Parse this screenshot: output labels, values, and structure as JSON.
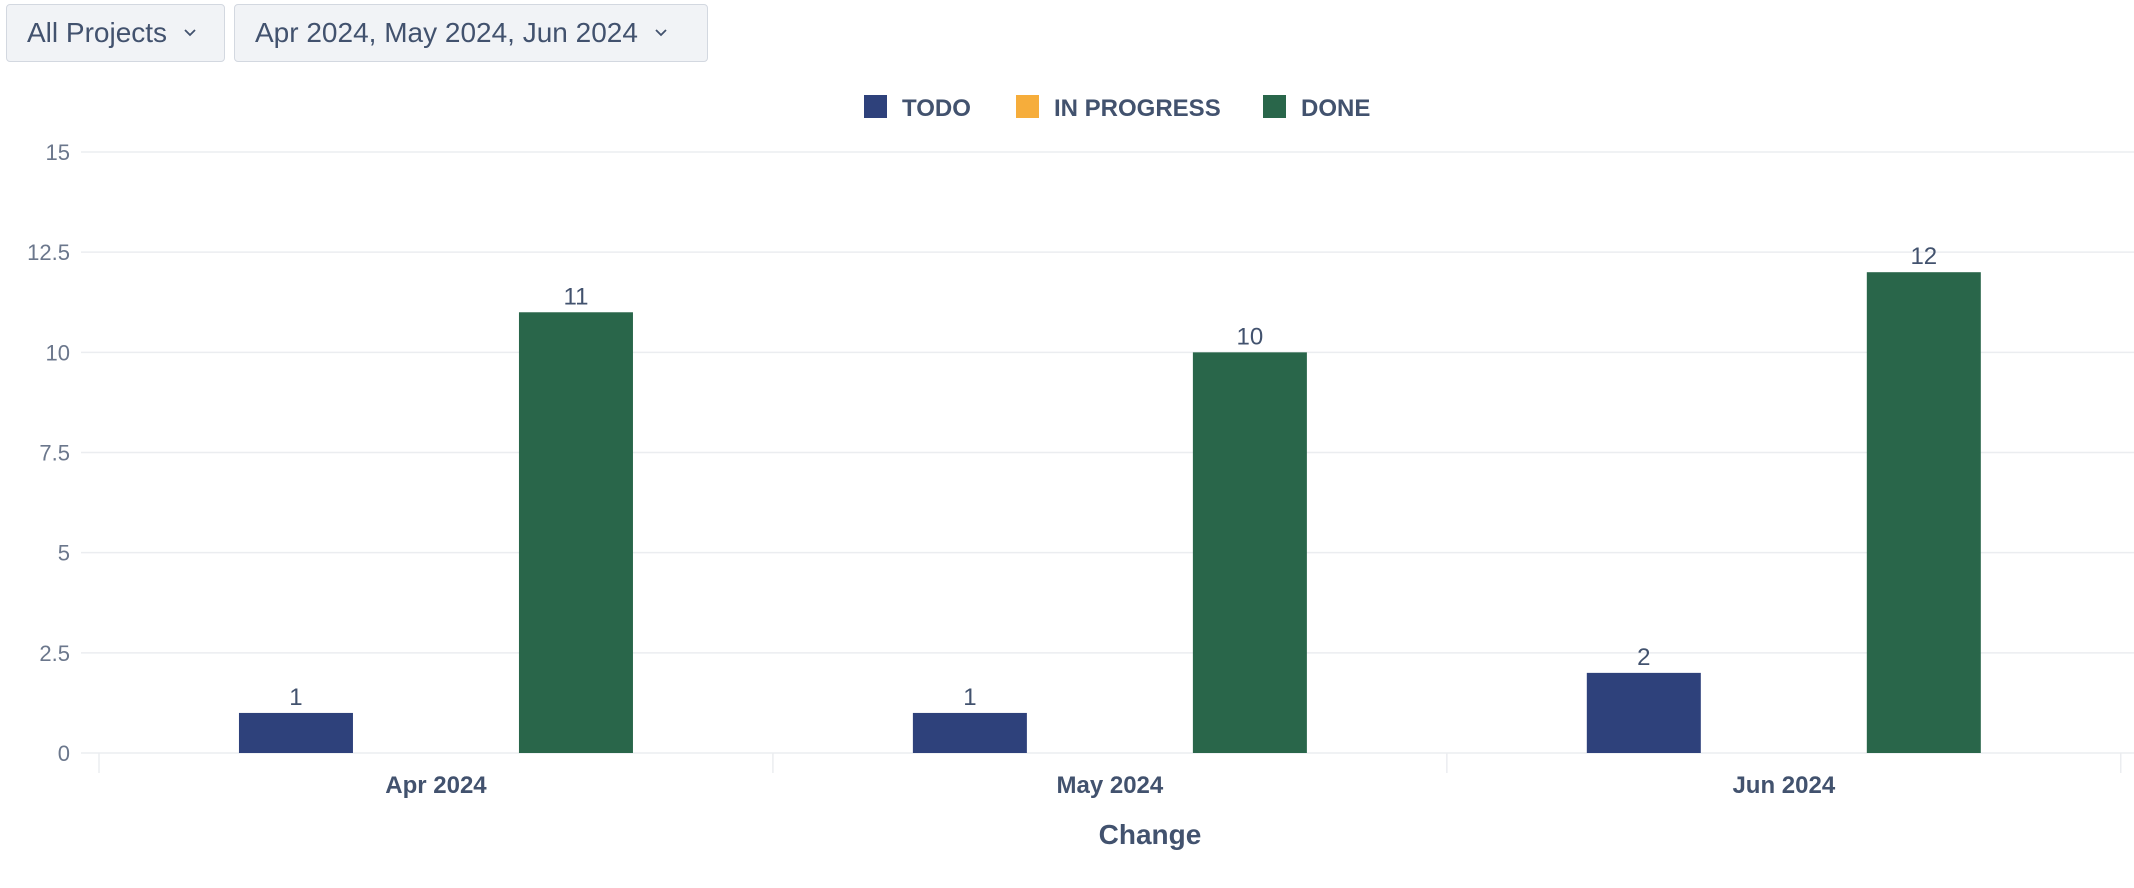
{
  "filters": {
    "project": {
      "label": "All Projects"
    },
    "period": {
      "label": "Apr 2024, May 2024, Jun 2024"
    }
  },
  "colors": {
    "todo": "#2e417b",
    "in_progress": "#f6ad3b",
    "done": "#29664a"
  },
  "chart_data": {
    "type": "bar",
    "xlabel": "Change",
    "categories": [
      "Apr 2024",
      "May 2024",
      "Jun 2024"
    ],
    "series": [
      {
        "name": "TODO",
        "color": "#2e417b",
        "values": [
          1,
          1,
          2
        ]
      },
      {
        "name": "IN PROGRESS",
        "color": "#f6ad3b",
        "values": [
          0,
          0,
          0
        ]
      },
      {
        "name": "DONE",
        "color": "#29664a",
        "values": [
          11,
          10,
          12
        ]
      }
    ],
    "data_labels": [
      [
        "1",
        "1",
        "2"
      ],
      [
        "",
        "",
        ""
      ],
      [
        "11",
        "10",
        "12"
      ]
    ],
    "ylim": [
      0,
      15
    ],
    "yticks": [
      "0",
      "2.5",
      "5",
      "7.5",
      "10",
      "12.5",
      "15"
    ],
    "legend_position": "top-center",
    "grid": true
  }
}
